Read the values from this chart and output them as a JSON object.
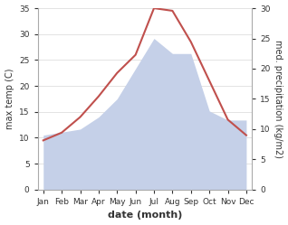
{
  "months": [
    "Jan",
    "Feb",
    "Mar",
    "Apr",
    "May",
    "Jun",
    "Jul",
    "Aug",
    "Sep",
    "Oct",
    "Nov",
    "Dec"
  ],
  "month_positions": [
    0,
    1,
    2,
    3,
    4,
    5,
    6,
    7,
    8,
    9,
    10,
    11
  ],
  "temp": [
    9.5,
    11.0,
    14.0,
    18.0,
    22.5,
    26.0,
    35.0,
    34.5,
    28.5,
    21.0,
    13.5,
    10.5
  ],
  "precip": [
    9.0,
    9.5,
    10.0,
    12.0,
    15.0,
    20.0,
    25.0,
    22.5,
    22.5,
    13.0,
    11.5,
    11.5
  ],
  "temp_color": "#c0504d",
  "precip_fill": "#c5d0e8",
  "temp_ylim": [
    0,
    35
  ],
  "precip_ylim": [
    0,
    30
  ],
  "xlabel": "date (month)",
  "ylabel_left": "max temp (C)",
  "ylabel_right": "med. precipitation (kg/m2)",
  "bg_color": "#ffffff",
  "grid_color": "#d8d8d8",
  "left_yticks": [
    0,
    5,
    10,
    15,
    20,
    25,
    30,
    35
  ],
  "right_yticks": [
    0,
    5,
    10,
    15,
    20,
    25,
    30
  ]
}
